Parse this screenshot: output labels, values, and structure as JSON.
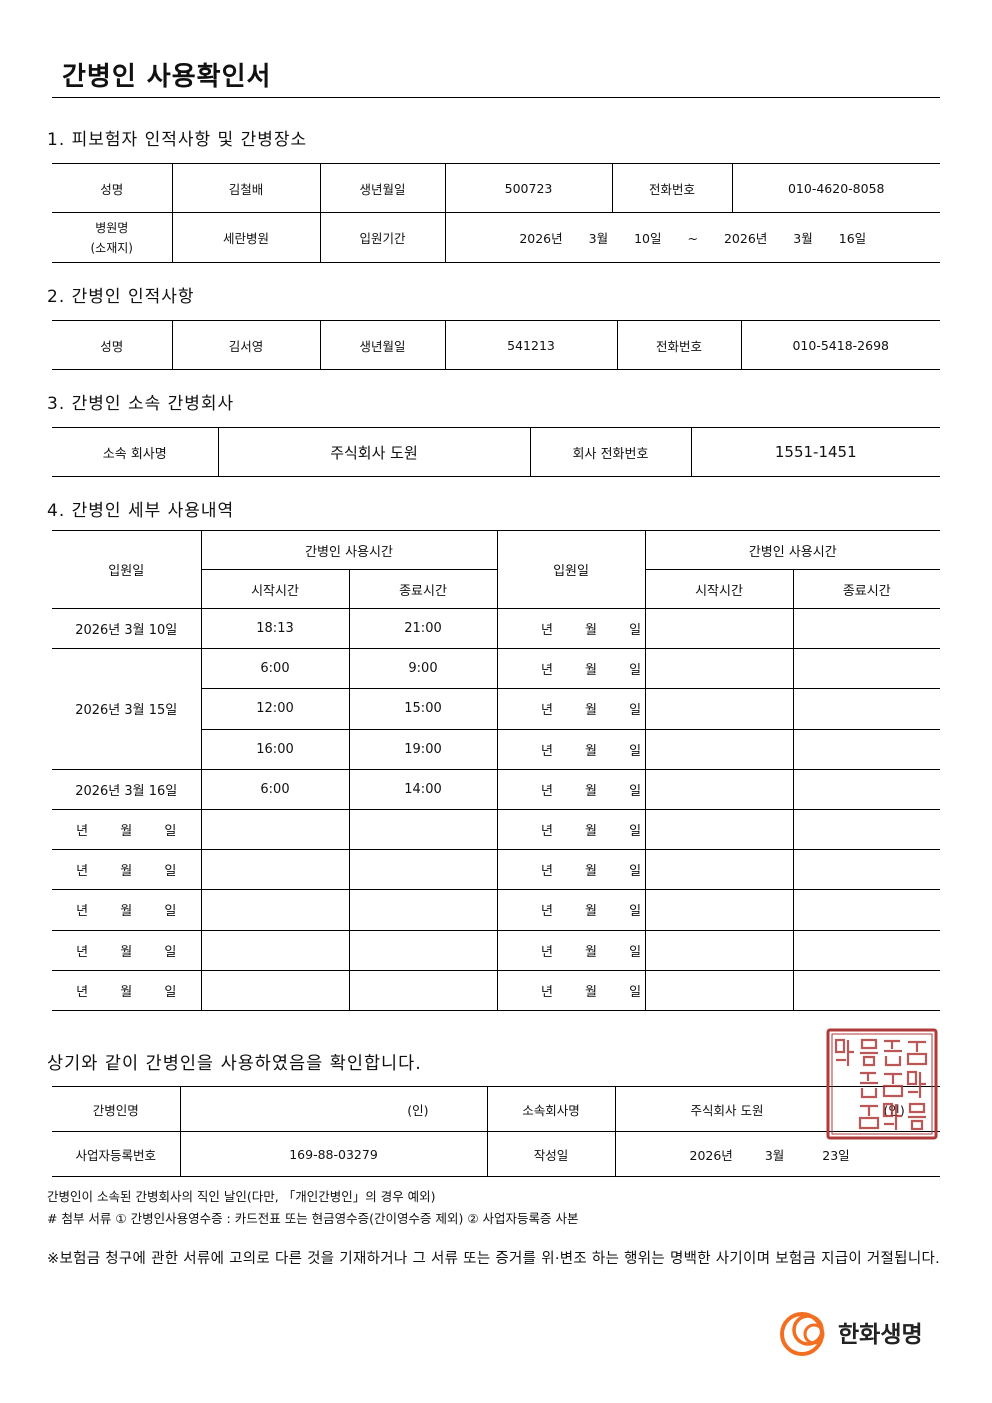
{
  "title": "간병인 사용확인서",
  "s1": {
    "heading": "1. 피보험자 인적사항 및 간병장소",
    "name_label": "성명",
    "name": "김철배",
    "birth_label": "생년월일",
    "birth": "500723",
    "phone_label": "전화번호",
    "phone": "010-4620-8058",
    "hospital_label": "병원명",
    "hospital_label2": "(소재지)",
    "hospital": "세란병원",
    "period_label": "입원기간",
    "period": {
      "y1": "2026년",
      "m1": "3월",
      "d1": "10일",
      "sep": "~",
      "y2": "2026년",
      "m2": "3월",
      "d2": "16일"
    }
  },
  "s2": {
    "heading": "2. 간병인 인적사항",
    "name_label": "성명",
    "name": "김서영",
    "birth_label": "생년월일",
    "birth": "541213",
    "phone_label": "전화번호",
    "phone": "010-5418-2698"
  },
  "s3": {
    "heading": "3. 간병인 소속 간병회사",
    "company_label": "소속 회사명",
    "company": "주식회사 도원",
    "phone_label": "회사 전화번호",
    "phone": "1551-1451"
  },
  "s4": {
    "heading": "4. 간병인 세부 사용내역",
    "admit_label": "입원일",
    "usage_label": "간병인 사용시간",
    "start_label": "시작시간",
    "end_label": "종료시간",
    "blank_date": "년 월 일",
    "rows": [
      {
        "date": "2026년 3월 10일",
        "span": 1,
        "start": "18:13",
        "end": "21:00"
      },
      {
        "date": "2026년 3월 15일",
        "span": 3,
        "start": "6:00",
        "end": "9:00"
      },
      {
        "date": null,
        "start": "12:00",
        "end": "15:00"
      },
      {
        "date": null,
        "start": "16:00",
        "end": "19:00"
      },
      {
        "date": "2026년 3월 16일",
        "span": 1,
        "start": "6:00",
        "end": "14:00"
      },
      {
        "date": "",
        "span": 1,
        "start": "",
        "end": ""
      },
      {
        "date": "",
        "span": 1,
        "start": "",
        "end": ""
      },
      {
        "date": "",
        "span": 1,
        "start": "",
        "end": ""
      },
      {
        "date": "",
        "span": 1,
        "start": "",
        "end": ""
      },
      {
        "date": "",
        "span": 1,
        "start": "",
        "end": ""
      }
    ]
  },
  "confirm": "상기와 같이 간병인을 사용하였음을 확인합니다.",
  "sign": {
    "caregiver_label": "간병인명",
    "seal_mark": "(인)",
    "company_label": "소속회사명",
    "company": "주식회사 도원",
    "seal_suffix": "(인)",
    "bizno_label": "사업자등록번호",
    "bizno": "169-88-03279",
    "date_label": "작성일",
    "date": {
      "y": "2026년",
      "m": "3월",
      "d": "23일"
    }
  },
  "notes": [
    "간병인이 소속된 간병회사의 직인 날인(다만, 「개인간병인」의 경우 예외)",
    "# 첨부 서류 ① 간병인사용영수증 : 카드전표 또는 현금영수증(간이영수증 제외)  ② 사업자등록증 사본"
  ],
  "warning": "※보험금 청구에 관한 서류에 고의로 다른 것을 기재하거나 그 서류 또는 증거를 위·변조 하는 행위는 명백한 사기이며 보험금 지급이 거절됩니다.",
  "stamp": {
    "text": "주식회사도원사용인감",
    "color": "#b03a3a"
  },
  "logo": {
    "text": "한화생명",
    "color": "#f26f21"
  }
}
